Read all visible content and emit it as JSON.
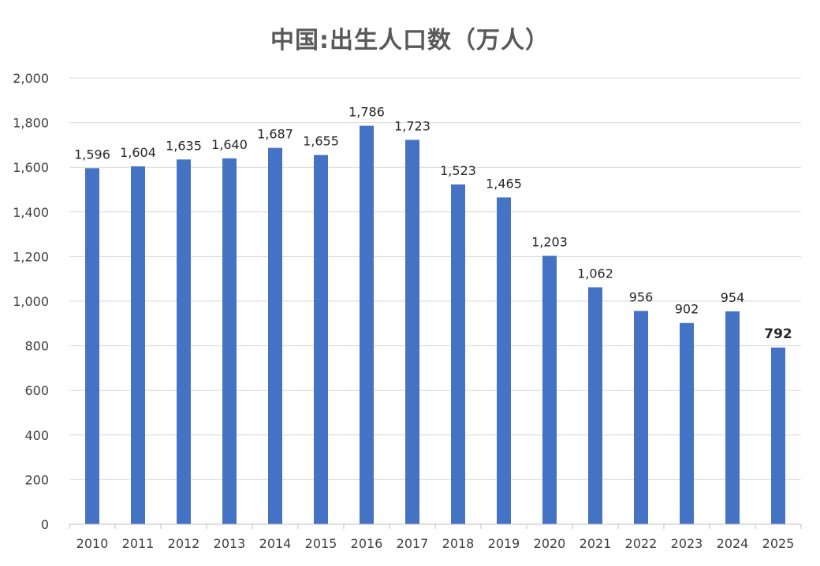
{
  "chart_data": {
    "type": "bar",
    "title": "中国:出生人口数（万人）",
    "categories": [
      "2010",
      "2011",
      "2012",
      "2013",
      "2014",
      "2015",
      "2016",
      "2017",
      "2018",
      "2019",
      "2020",
      "2021",
      "2022",
      "2023",
      "2024",
      "2025"
    ],
    "values": [
      1596,
      1604,
      1635,
      1640,
      1687,
      1655,
      1786,
      1723,
      1523,
      1465,
      1203,
      1062,
      956,
      902,
      954,
      792
    ],
    "value_labels": [
      "1,596",
      "1,604",
      "1,635",
      "1,640",
      "1,687",
      "1,655",
      "1,786",
      "1,723",
      "1,523",
      "1,465",
      "1,203",
      "1,062",
      "956",
      "902",
      "954",
      "792"
    ],
    "ylim": [
      0,
      2000
    ],
    "yticks": [
      0,
      200,
      400,
      600,
      800,
      1000,
      1200,
      1400,
      1600,
      1800,
      2000
    ],
    "ytick_labels": [
      "0",
      "200",
      "400",
      "600",
      "800",
      "1,000",
      "1,200",
      "1,400",
      "1,600",
      "1,800",
      "2,000"
    ],
    "grid": true,
    "legend": "none",
    "bar_color": "#4472C4",
    "highlight_index": 15,
    "highlight_label_color": "#C00000"
  }
}
